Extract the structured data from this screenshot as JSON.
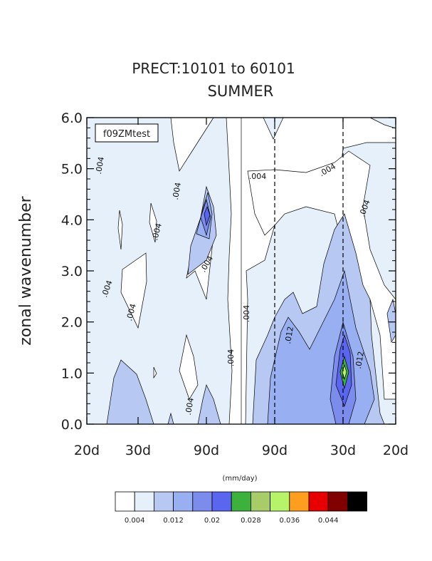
{
  "title_line1": "PRECT:10101 to 60101",
  "title_line2": "SUMMER",
  "case_label": "f09ZMtest",
  "chart_data": {
    "type": "heatmap",
    "title": "PRECT:10101 to 60101 SUMMER",
    "ylabel": "zonal wavenumber",
    "xlabel": "",
    "ylim": [
      0.0,
      6.0
    ],
    "y_ticks": [
      "0.0",
      "1.0",
      "2.0",
      "3.0",
      "4.0",
      "5.0",
      "6.0"
    ],
    "x_ticks": [
      "20d",
      "30d",
      "90d",
      "90d",
      "30d",
      "20d"
    ],
    "colorbar_units": "(mm/day)",
    "colorbar_labels": [
      "0.004",
      "0.012",
      "0.02",
      "0.028",
      "0.036",
      "0.044"
    ],
    "contour_labels": [
      ".004",
      ".004",
      ".004",
      ".004",
      ".004",
      ".004",
      ".004",
      ".004",
      ".004",
      ".004",
      ".004",
      ".004",
      ".012",
      ".012"
    ],
    "levels": [
      0.004,
      0.008,
      0.012,
      0.016,
      0.02,
      0.024,
      0.028,
      0.032,
      0.036,
      0.04,
      0.044,
      0.048
    ],
    "colors": [
      "#ffffff",
      "#e6f0fb",
      "#b7c9f3",
      "#98aff1",
      "#7b8cec",
      "#5a66f0",
      "#3cb23c",
      "#a8cc68",
      "#b6f26a",
      "#ff9e1e",
      "#e60000",
      "#800000",
      "#000000"
    ],
    "features": {
      "max_value_region": "wavenumber 1, westward 30d period",
      "note_lines": "dashed lines at 90d and 30d on eastward side; solid line at zero frequency"
    }
  }
}
